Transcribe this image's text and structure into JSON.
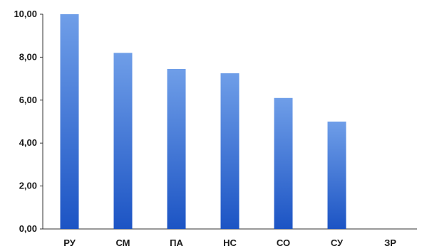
{
  "chart_data": {
    "type": "bar",
    "categories": [
      "РУ",
      "СМ",
      "ПА",
      "НС",
      "СО",
      "СУ",
      "ЗР"
    ],
    "values": [
      10.0,
      8.2,
      7.45,
      7.25,
      6.1,
      5.0,
      0.0
    ],
    "yticks": [
      "0,00",
      "2,00",
      "4,00",
      "6,00",
      "8,00",
      "10,00"
    ],
    "ylim": [
      0,
      10
    ],
    "grid": false,
    "colors": {
      "bar_top": "#6f9ee8",
      "bar_bottom": "#1c54c4",
      "axis": "#333333"
    }
  }
}
